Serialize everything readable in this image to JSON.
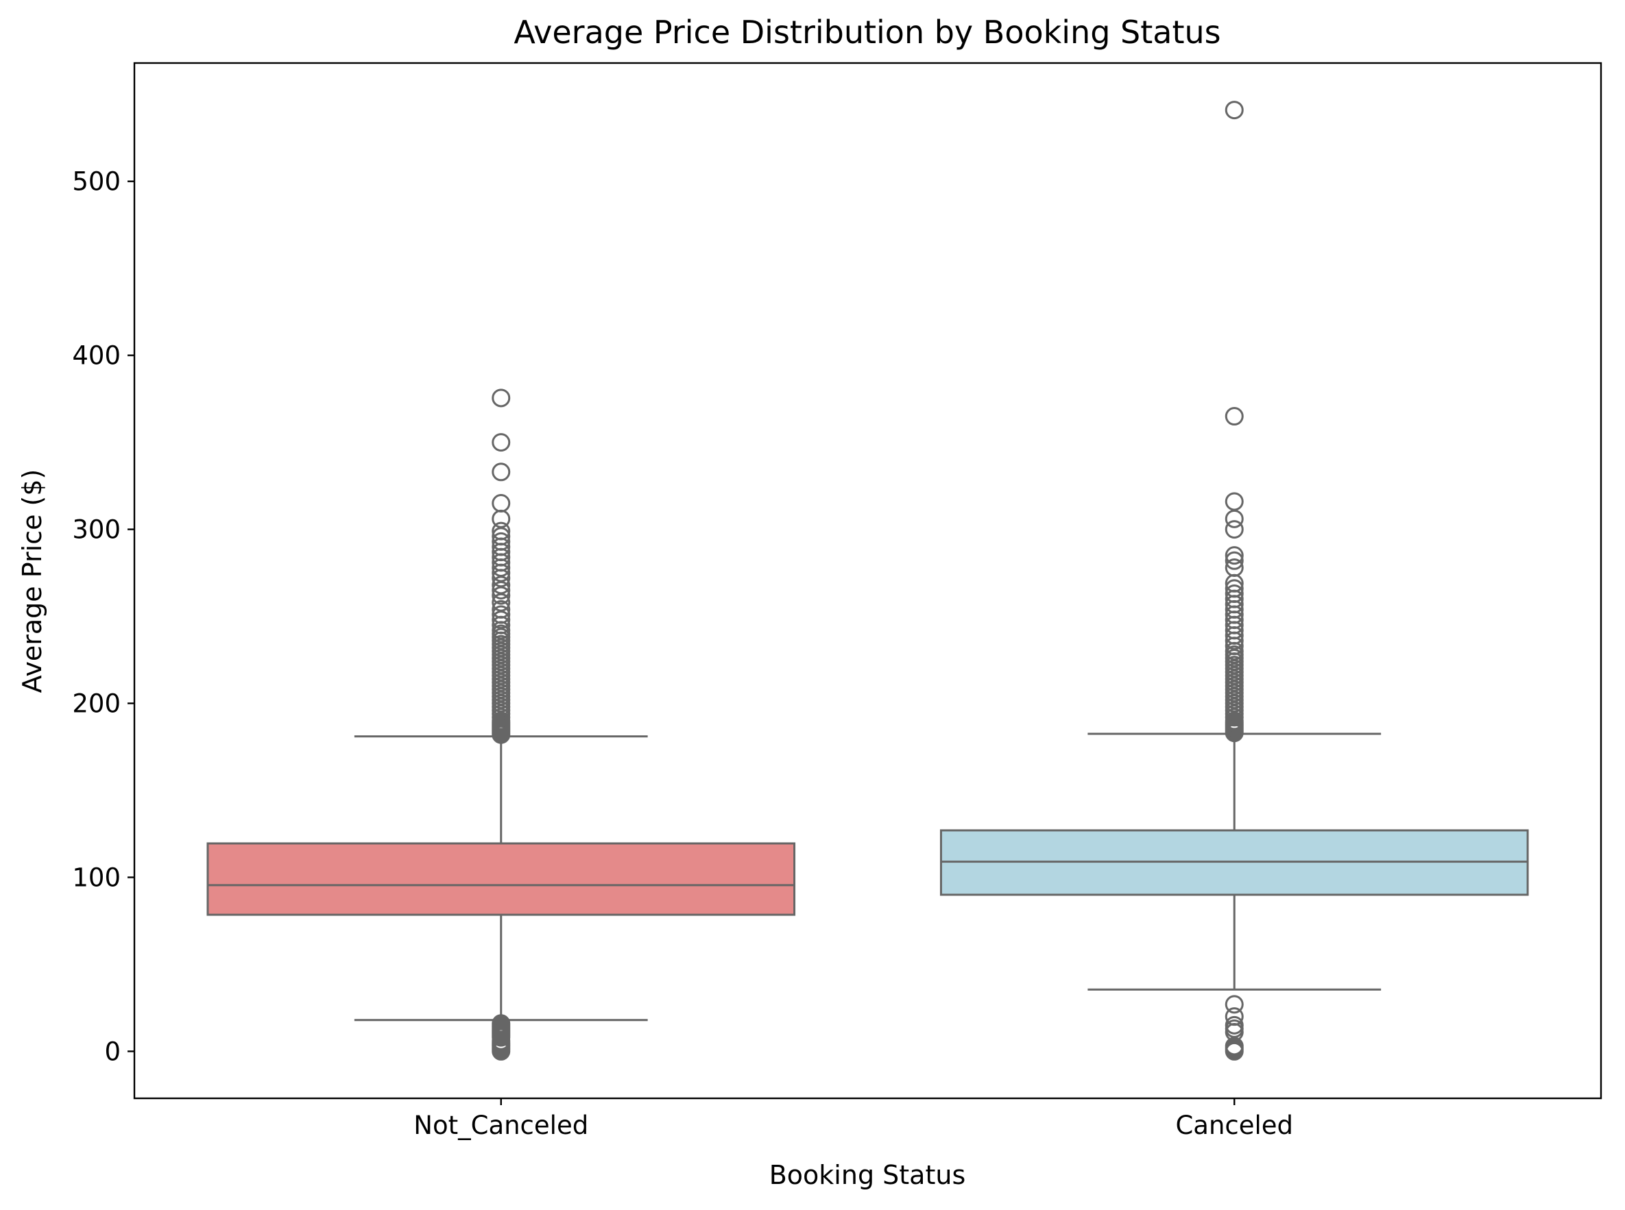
{
  "chart_data": {
    "type": "box",
    "title": "Average Price Distribution by Booking Status",
    "xlabel": "Booking Status",
    "ylabel": "Average Price ($)",
    "ylim": [
      -27,
      568
    ],
    "yticks": [
      0,
      100,
      200,
      300,
      400,
      500
    ],
    "categories": [
      "Not_Canceled",
      "Canceled"
    ],
    "boxes": [
      {
        "category": "Not_Canceled",
        "color": "#e48a8a",
        "whisker_low": 18,
        "q1": 78.5,
        "median": 95.5,
        "q3": 119.5,
        "whisker_high": 181,
        "outliers": [
          0,
          1,
          2,
          3,
          4,
          5,
          6,
          8,
          9,
          10,
          11,
          12,
          13,
          14,
          15,
          16,
          182,
          183,
          184,
          185,
          186,
          187,
          188,
          189,
          190,
          192,
          194,
          196,
          198,
          200,
          202,
          204,
          206,
          208,
          210,
          212,
          214,
          216,
          218,
          220,
          222,
          224,
          226,
          228,
          230,
          232,
          234,
          236,
          238,
          240,
          242,
          245,
          248,
          251,
          254,
          258,
          262,
          265,
          268,
          272,
          275,
          278,
          281,
          284,
          287,
          290,
          293,
          296,
          299,
          306,
          315,
          333,
          350,
          375.5
        ]
      },
      {
        "category": "Canceled",
        "color": "#b3d6e1",
        "whisker_low": 35.5,
        "q1": 90,
        "median": 109,
        "q3": 127,
        "whisker_high": 182.5,
        "outliers": [
          0,
          1,
          2,
          3,
          11,
          13,
          15,
          20,
          27,
          183,
          184,
          185,
          186,
          187,
          188,
          189,
          190,
          192,
          194,
          196,
          198,
          200,
          202,
          204,
          206,
          208,
          210,
          212,
          214,
          216,
          218,
          220,
          222,
          224,
          226,
          228,
          230,
          233,
          236,
          239,
          242,
          245,
          248,
          251,
          254,
          257,
          260,
          263,
          266,
          269,
          278,
          282,
          285,
          300,
          306,
          316,
          365,
          541
        ]
      }
    ],
    "colors": {
      "box_edge": "#666666",
      "flier_edge": "#666666",
      "axes": "#000000"
    }
  }
}
